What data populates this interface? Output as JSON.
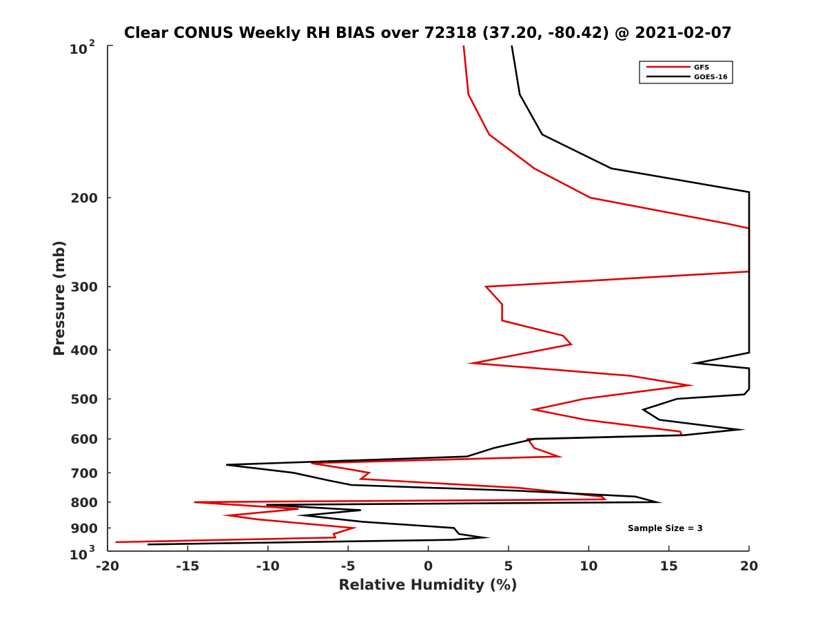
{
  "chart_data": {
    "type": "line",
    "title": "Clear CONUS Weekly RH BIAS over 72318 (37.20, -80.42) @ 2021-02-07",
    "xlabel": "Relative Humidity (%)",
    "ylabel": "Pressure (mb)",
    "xlim": [
      -20,
      20
    ],
    "ylim": [
      100,
      1000
    ],
    "y_scale": "log",
    "y_reversed": true,
    "grid": false,
    "legend_position": "top-right",
    "x_ticks": [
      -20,
      -15,
      -10,
      -5,
      0,
      5,
      10,
      15,
      20
    ],
    "x_tick_labels": [
      "-20",
      "-15",
      "-10",
      "-5",
      "0",
      "5",
      "10",
      "15",
      "20"
    ],
    "y_ticks": [
      200,
      300,
      400,
      500,
      600,
      700,
      800,
      900
    ],
    "y_tick_labels": [
      "200",
      "300",
      "400",
      "500",
      "600",
      "700",
      "800",
      "900"
    ],
    "y_tick_top": {
      "base": "10",
      "exp": "2"
    },
    "y_tick_bottom": {
      "base": "10",
      "exp": "3"
    },
    "annotation": "Sample Size = 3",
    "series": [
      {
        "name": "GFS",
        "color": "#e00000",
        "points": [
          [
            2.2,
            100
          ],
          [
            2.5,
            125
          ],
          [
            3.8,
            150
          ],
          [
            6.6,
            175
          ],
          [
            10.1,
            200
          ],
          [
            18.6,
            225
          ],
          [
            20.0,
            230
          ],
          [
            20.0,
            280
          ],
          [
            3.6,
            300
          ],
          [
            4.6,
            325
          ],
          [
            4.6,
            350
          ],
          [
            8.4,
            375
          ],
          [
            8.9,
            390
          ],
          [
            2.8,
            425
          ],
          [
            12.6,
            450
          ],
          [
            16.2,
            470
          ],
          [
            9.7,
            500
          ],
          [
            6.6,
            525
          ],
          [
            9.8,
            550
          ],
          [
            15.7,
            580
          ],
          [
            15.8,
            590
          ],
          [
            6.2,
            600
          ],
          [
            6.6,
            625
          ],
          [
            8.1,
            650
          ],
          [
            -7.3,
            670
          ],
          [
            -4.8,
            690
          ],
          [
            -3.7,
            700
          ],
          [
            -4.2,
            720
          ],
          [
            5.7,
            750
          ],
          [
            10.8,
            780
          ],
          [
            11.0,
            790
          ],
          [
            -14.6,
            800
          ],
          [
            -8.1,
            825
          ],
          [
            -12.4,
            850
          ],
          [
            -10.7,
            865
          ],
          [
            -4.7,
            900
          ],
          [
            -5.9,
            925
          ],
          [
            -5.8,
            940
          ],
          [
            -19.5,
            960
          ]
        ]
      },
      {
        "name": "GOES-16",
        "color": "#000000",
        "points": [
          [
            5.2,
            100
          ],
          [
            5.7,
            125
          ],
          [
            7.1,
            150
          ],
          [
            11.4,
            175
          ],
          [
            20.0,
            195
          ],
          [
            20.0,
            405
          ],
          [
            16.7,
            425
          ],
          [
            20.0,
            435
          ],
          [
            20.0,
            478
          ],
          [
            19.7,
            490
          ],
          [
            15.5,
            500
          ],
          [
            13.4,
            525
          ],
          [
            14.4,
            550
          ],
          [
            19.3,
            575
          ],
          [
            15.9,
            590
          ],
          [
            6.6,
            600
          ],
          [
            4.1,
            625
          ],
          [
            2.4,
            650
          ],
          [
            -12.6,
            675
          ],
          [
            -8.4,
            700
          ],
          [
            -6.2,
            725
          ],
          [
            -4.8,
            740
          ],
          [
            5.7,
            760
          ],
          [
            12.9,
            780
          ],
          [
            14.2,
            800
          ],
          [
            -10.1,
            810
          ],
          [
            -4.2,
            830
          ],
          [
            -7.7,
            850
          ],
          [
            -4.1,
            875
          ],
          [
            1.6,
            900
          ],
          [
            1.9,
            925
          ],
          [
            3.4,
            940
          ],
          [
            1.5,
            950
          ],
          [
            -17.5,
            970
          ]
        ]
      }
    ]
  }
}
